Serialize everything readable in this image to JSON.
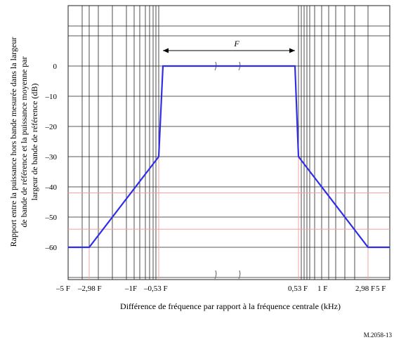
{
  "chart_data": {
    "type": "line",
    "ylabel_lines": [
      "Rapport entre la puissance hors bande mesurée dans la largeur",
      "de bande de référence et la puissance moyenne par",
      "largeur de bande de référence (dB)"
    ],
    "xlabel": "Différence de fréquence par rapport à la fréquence centrale (kHz)",
    "figure_id": "M.2058-13",
    "bandwidth_label": "F",
    "y_ticks": [
      "0",
      "–10",
      "–20",
      "–30",
      "–40",
      "–50",
      "–60"
    ],
    "y_tick_values": [
      0,
      -10,
      -20,
      -30,
      -40,
      -50,
      -60
    ],
    "ylim": [
      -71,
      21
    ],
    "x_tick_labels": [
      "–5 F",
      "–2,98 F",
      "–1F",
      "–0,53 F",
      "0,53 F",
      "1 F",
      "2,98 F",
      "5 F"
    ],
    "x_tick_values": [
      -5,
      -2.98,
      -1,
      -0.53,
      0.53,
      1,
      2.98,
      5
    ],
    "series": [
      {
        "x": [
          -5,
          -2.98,
          -0.53,
          -0.5,
          0.5,
          0.53,
          2.98,
          5
        ],
        "y": [
          -60,
          -60,
          -30,
          0,
          0,
          -30,
          -60,
          -60
        ]
      }
    ],
    "reference_lines_db": [
      -42,
      -54
    ],
    "grid": true,
    "colors": {
      "mask": "#2e2eea",
      "grid": "#222222",
      "reference": "#f0a0a0"
    }
  }
}
